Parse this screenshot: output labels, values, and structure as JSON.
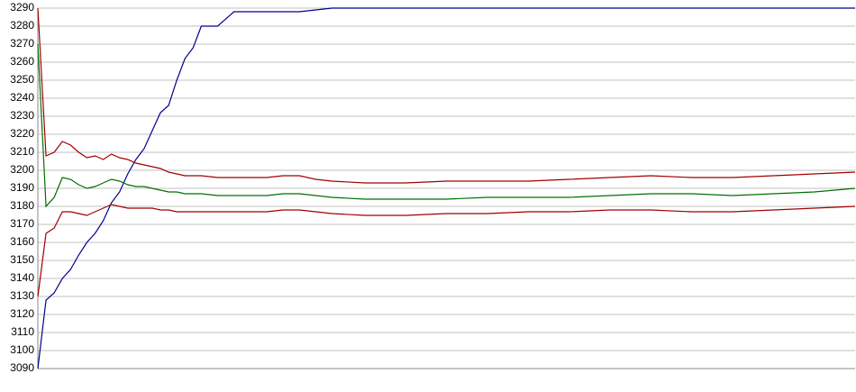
{
  "chart_data": {
    "type": "line",
    "x": [
      0,
      1,
      2,
      3,
      4,
      5,
      6,
      7,
      8,
      9,
      10,
      11,
      12,
      13,
      14,
      15,
      16,
      17,
      18,
      19,
      20,
      22,
      24,
      26,
      28,
      30,
      32,
      34,
      36,
      40,
      45,
      50,
      55,
      60,
      65,
      70,
      75,
      80,
      85,
      90,
      95,
      100
    ],
    "xlim": [
      0,
      100
    ],
    "ylim": [
      3090,
      3290
    ],
    "yticks": [
      3090,
      3100,
      3110,
      3120,
      3130,
      3140,
      3150,
      3160,
      3170,
      3180,
      3190,
      3200,
      3210,
      3220,
      3230,
      3240,
      3250,
      3260,
      3270,
      3280,
      3290
    ],
    "grid": true,
    "series": [
      {
        "color": "#00008b",
        "values": [
          3090,
          3128,
          3132,
          3140,
          3145,
          3153,
          3160,
          3165,
          3172,
          3182,
          3188,
          3198,
          3206,
          3212,
          3222,
          3232,
          3236,
          3250,
          3262,
          3268,
          3280,
          3280,
          3288,
          3288,
          3288,
          3288,
          3288,
          3289,
          3290,
          3290,
          3290,
          3290,
          3290,
          3290,
          3290,
          3290,
          3290,
          3290,
          3290,
          3290,
          3290,
          3290
        ]
      },
      {
        "color": "#a00000",
        "values": [
          3290,
          3208,
          3210,
          3216,
          3214,
          3210,
          3207,
          3208,
          3206,
          3209,
          3207,
          3206,
          3204,
          3203,
          3202,
          3201,
          3199,
          3198,
          3197,
          3197,
          3197,
          3196,
          3196,
          3196,
          3196,
          3197,
          3197,
          3195,
          3194,
          3193,
          3193,
          3194,
          3194,
          3194,
          3195,
          3196,
          3197,
          3196,
          3196,
          3197,
          3198,
          3199
        ]
      },
      {
        "color": "#007000",
        "values": [
          3270,
          3180,
          3185,
          3196,
          3195,
          3192,
          3190,
          3191,
          3193,
          3195,
          3194,
          3192,
          3191,
          3191,
          3190,
          3189,
          3188,
          3188,
          3187,
          3187,
          3187,
          3186,
          3186,
          3186,
          3186,
          3187,
          3187,
          3186,
          3185,
          3184,
          3184,
          3184,
          3185,
          3185,
          3185,
          3186,
          3187,
          3187,
          3186,
          3187,
          3188,
          3190
        ]
      },
      {
        "color": "#a00000",
        "values": [
          3130,
          3165,
          3168,
          3177,
          3177,
          3176,
          3175,
          3177,
          3179,
          3181,
          3180,
          3179,
          3179,
          3179,
          3179,
          3178,
          3178,
          3177,
          3177,
          3177,
          3177,
          3177,
          3177,
          3177,
          3177,
          3178,
          3178,
          3177,
          3176,
          3175,
          3175,
          3176,
          3176,
          3177,
          3177,
          3178,
          3178,
          3177,
          3177,
          3178,
          3179,
          3180
        ]
      }
    ]
  }
}
